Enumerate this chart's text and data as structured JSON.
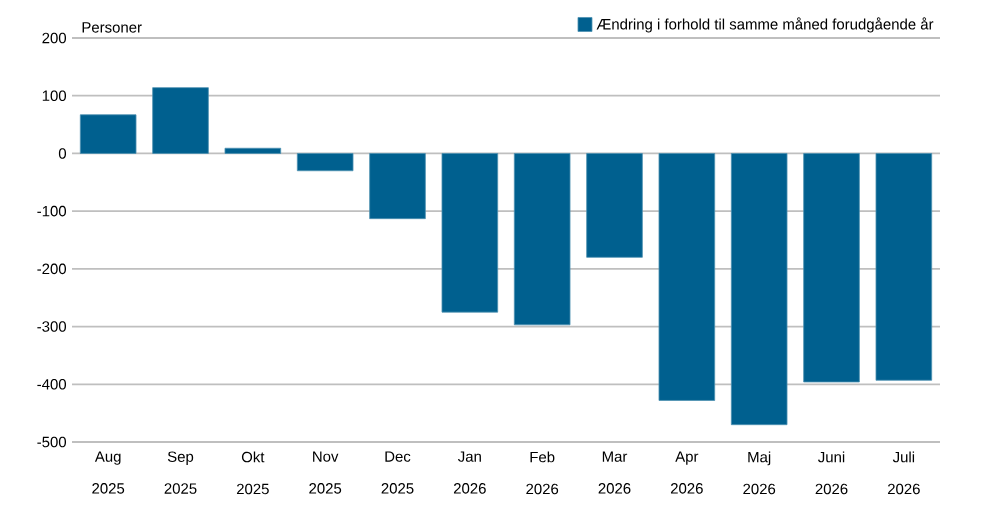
{
  "chart_data": {
    "type": "bar",
    "ylabel": "Personer",
    "categories": [
      "Aug 2025",
      "Sep 2025",
      "Okt 2025",
      "Nov 2025",
      "Dec 2025",
      "Jan 2026",
      "Feb 2026",
      "Mar 2026",
      "Apr 2026",
      "Maj 2026",
      "Juni 2026",
      "Juli 2026"
    ],
    "series": [
      {
        "name": "Ændring i forhold til samme måned forudgående år",
        "color": "#00608f",
        "values": [
          67,
          114,
          9,
          -30,
          -113,
          -275,
          -297,
          -180,
          -428,
          -470,
          -396,
          -393
        ]
      }
    ],
    "ylim": [
      -500,
      200
    ],
    "yticks": [
      -500,
      -400,
      -300,
      -200,
      -100,
      0,
      100,
      200
    ],
    "grid": "y",
    "legend": "top right"
  }
}
